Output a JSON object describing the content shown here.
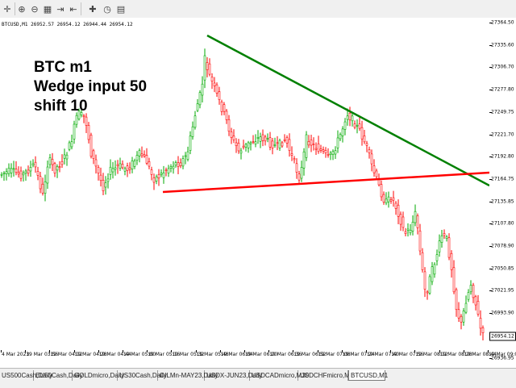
{
  "toolbar": {
    "buttons": [
      {
        "name": "crosshair-icon",
        "glyph": "✛"
      },
      {
        "name": "zoom-in-icon",
        "glyph": "⊕"
      },
      {
        "name": "zoom-out-icon",
        "glyph": "⊖"
      },
      {
        "name": "tile-windows-icon",
        "glyph": "▦"
      },
      {
        "name": "scroll-end-icon",
        "glyph": "⇥"
      },
      {
        "name": "chart-shift-icon",
        "glyph": "⇤"
      },
      {
        "name": "indicators-icon",
        "glyph": "✚"
      },
      {
        "name": "periods-icon",
        "glyph": "◷"
      },
      {
        "name": "templates-icon",
        "glyph": "▤"
      }
    ]
  },
  "chart": {
    "header": "BTCUSD,M1  26952.57 26954.12 26944.44 26954.12",
    "annotation": [
      "BTC m1",
      "Wedge input 50",
      "shift 10"
    ],
    "current_price": "26954.12",
    "colors": {
      "bull": "#00aa00",
      "bear": "#ff0000",
      "upper_line": "#008000",
      "lower_line": "#ff0000"
    },
    "price_labels": [
      "27364.50",
      "27335.60",
      "27306.70",
      "27277.80",
      "27249.75",
      "27221.70",
      "27192.80",
      "27164.75",
      "27135.85",
      "27107.80",
      "27078.90",
      "27050.85",
      "27021.95",
      "26993.90",
      "26965.00",
      "26936.95"
    ],
    "time_labels": [
      "4 Mar 2023",
      "19 Mar 03:56",
      "19 Mar 04:12",
      "19 Mar 04:28",
      "19 Mar 04:44",
      "19 Mar 05:00",
      "19 Mar 05:16",
      "19 Mar 05:32",
      "19 Mar 05:48",
      "19 Mar 06:04",
      "19 Mar 06:20",
      "19 Mar 06:36",
      "19 Mar 06:52",
      "19 Mar 07:08",
      "19 Mar 07:24",
      "19 Mar 07:40",
      "19 Mar 07:56",
      "19 Mar 08:12",
      "19 Mar 08:28",
      "19 Mar 08:44",
      "19 Mar 09:00"
    ]
  },
  "tabs": {
    "items": [
      {
        "label": "US500Cash,Daily",
        "active": false
      },
      {
        "label": "EU50Cash,Daily",
        "active": false
      },
      {
        "label": "GOLDmicro,Daily",
        "active": false
      },
      {
        "label": "US30Cash,Daily",
        "active": false
      },
      {
        "label": "OILMn-MAY23,Daily",
        "active": false
      },
      {
        "label": "USDX-JUN23,Daily",
        "active": false
      },
      {
        "label": "USDCADmicro,M30",
        "active": false
      },
      {
        "label": "USDCHFmicro,M30",
        "active": false
      },
      {
        "label": "BTCUSD,M1",
        "active": true
      }
    ],
    "scroll_glyph": "◂▸"
  }
}
